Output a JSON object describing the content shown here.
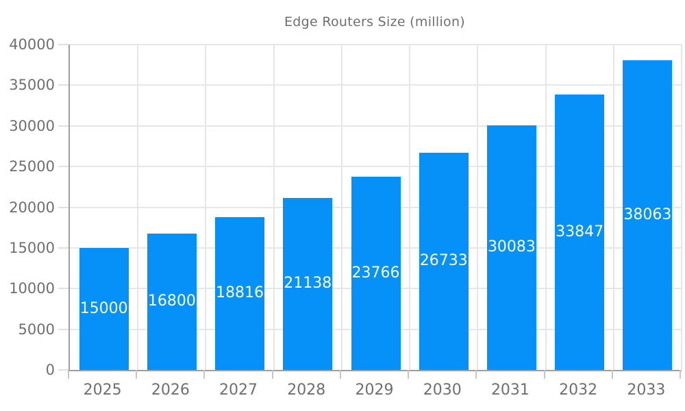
{
  "legend": {
    "label": "Edge Routers Size (million)"
  },
  "colors": {
    "bar": "#0591f8",
    "axis": "#9e9e9e",
    "grid": "#e6e6e6",
    "ytick_mark": "#e0e0e0",
    "xtick_mark": "#c6c6c6",
    "tick_text": "#6f6f6f",
    "value_text": "#ffffff",
    "background": "#ffffff"
  },
  "chart_data": {
    "type": "bar",
    "title": "Edge Routers Size (million)",
    "categories": [
      "2025",
      "2026",
      "2027",
      "2028",
      "2029",
      "2030",
      "2031",
      "2032",
      "2033"
    ],
    "series": [
      {
        "name": "Edge Routers Size (million)",
        "values": [
          15000,
          16800,
          18816,
          21138,
          23766,
          26733,
          30083,
          33847,
          38063
        ]
      }
    ],
    "bar_value_labels": [
      "15000",
      "16800",
      "18816",
      "21138",
      "23766",
      "26733",
      "30083",
      "33847",
      "38063"
    ],
    "xlabel": "",
    "ylabel": "",
    "ylim": [
      0,
      40000
    ],
    "yticks": [
      0,
      5000,
      10000,
      15000,
      20000,
      25000,
      30000,
      35000,
      40000
    ],
    "ytick_labels": [
      "0",
      "5000",
      "10000",
      "15000",
      "20000",
      "25000",
      "30000",
      "35000",
      "40000"
    ],
    "grid": true,
    "legend_position": "top"
  }
}
